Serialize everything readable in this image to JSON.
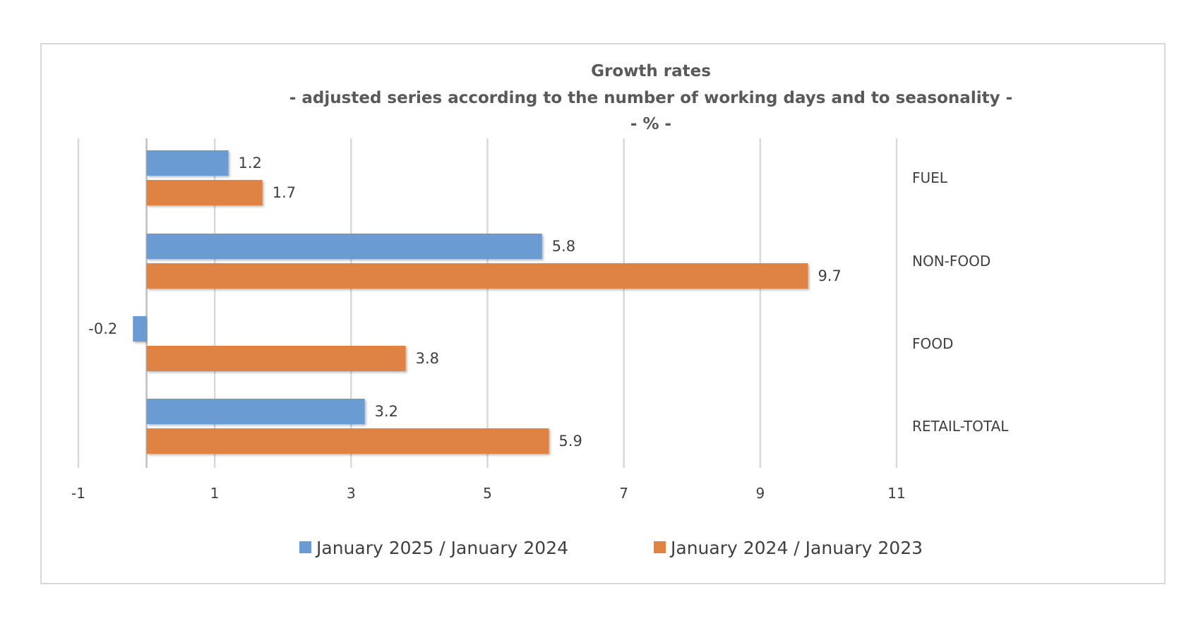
{
  "chart_data": {
    "type": "bar",
    "orientation": "horizontal",
    "title": "Growth rates",
    "subtitle": "- adjusted series according to the number of working days and to seasonality -",
    "unit_label": "- % -",
    "categories": [
      "FUEL",
      "NON-FOOD",
      "FOOD",
      "RETAIL-TOTAL"
    ],
    "series": [
      {
        "name": "January 2025 / January 2024",
        "color": "#6b9bd2",
        "values": [
          1.2,
          5.8,
          -0.2,
          3.2
        ],
        "labels": [
          "1.2",
          "5.8",
          "-0.2",
          "3.2"
        ]
      },
      {
        "name": "January 2024 / January 2023",
        "color": "#df8344",
        "values": [
          1.7,
          9.7,
          3.8,
          5.9
        ],
        "labels": [
          "1.7",
          "9.7",
          "3.8",
          "5.9"
        ]
      }
    ],
    "xlim": [
      -1,
      11
    ],
    "xticks": [
      -1,
      1,
      3,
      5,
      7,
      9,
      11
    ],
    "xtick_labels": [
      "-1",
      "1",
      "3",
      "5",
      "7",
      "9",
      "11"
    ],
    "grid": true,
    "legend_position": "bottom-center",
    "gridline_color": "#d9d9d9",
    "axis_color": "#bfbfbf"
  }
}
